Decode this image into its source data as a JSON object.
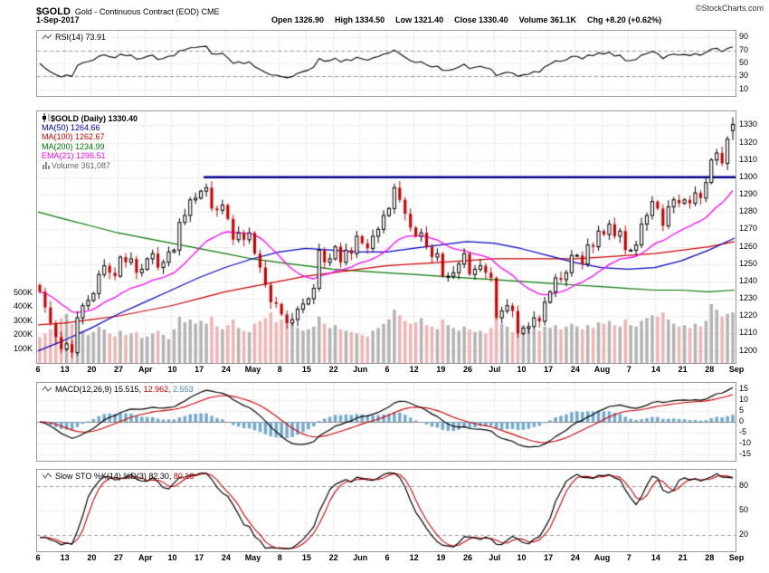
{
  "header": {
    "symbol": "$GOLD",
    "title": "Gold - Continuous Contract (EOD) CME",
    "source": "©StockCharts.com",
    "date": "1-Sep-2017",
    "stats": [
      "Open 1326.90",
      "High 1334.50",
      "Low 1321.40",
      "Close 1330.40",
      "Volume 361.1K",
      "Chg +8.20 (+0.62%)"
    ]
  },
  "legends": {
    "rsi": "RSI(14) 73.91",
    "symbol": "$GOLD (Daily) 1330.40",
    "ma50": "MA(50) 1264.66",
    "ma100": "MA(100) 1262.67",
    "ma200": "MA(200) 1234.99",
    "ema21": "EMA(21) 1296.51",
    "volume": "Volume 361,087",
    "macd_main": "MACD(12,26,9) 15.515,",
    "macd_signal": "12.962,",
    "macd_hist": "2.553",
    "sto_main": "Slow STO %K(14) %D(3) 82.30,",
    "sto_d": "80.18"
  },
  "colors": {
    "up": "#000000",
    "up_fill": "#FFFFFF",
    "down": "#CC0000",
    "vol_up": "#B4B4B4",
    "vol_down": "#F0B4B4",
    "ma50": "#0000BB",
    "ma100": "#CC0000",
    "ma200": "#007700",
    "ema21": "#FF00FF",
    "trendline": "#00008B",
    "macd_hist": "#74AACE",
    "signal": "#CC0000",
    "grid": "#CCCCCC"
  },
  "chart_data": [
    {
      "panel": "rsi",
      "type": "line",
      "label": "RSI(14)",
      "value": 73.91,
      "period": 14,
      "ylim": [
        0,
        100
      ],
      "yticks": [
        90,
        70,
        50,
        30,
        10
      ],
      "bands": [
        70,
        30
      ],
      "note": "RSI(14) curve derived from price closes below"
    },
    {
      "panel": "price",
      "type": "candlestick",
      "symbol": "$GOLD",
      "timeframe": "Daily",
      "date_range": "6-Mar-2017 to 1-Sep-2017",
      "last_close": 1330.4,
      "ylim": [
        1193,
        1338
      ],
      "yticks": [
        1330,
        1320,
        1310,
        1300,
        1290,
        1280,
        1270,
        1260,
        1250,
        1240,
        1230,
        1220,
        1210,
        1200
      ],
      "x_labels": [
        "6",
        "13",
        "20",
        "27",
        "Apr",
        "10",
        "17",
        "24",
        "May",
        "8",
        "15",
        "22",
        "Jun",
        "6",
        "12",
        "19",
        "26",
        "Jul",
        "10",
        "17",
        "24",
        "Aug",
        "7",
        "14",
        "21",
        "28",
        "Sep"
      ],
      "closes": [
        1234,
        1225,
        1216,
        1208,
        1201,
        1204,
        1199,
        1219,
        1226,
        1229,
        1233,
        1244,
        1249,
        1245,
        1243,
        1254,
        1251,
        1253,
        1245,
        1247,
        1253,
        1256,
        1248,
        1251,
        1257,
        1258,
        1274,
        1278,
        1287,
        1288,
        1292,
        1294,
        1282,
        1281,
        1284,
        1276,
        1264,
        1268,
        1264,
        1268,
        1256,
        1248,
        1238,
        1228,
        1227,
        1221,
        1216,
        1218,
        1224,
        1227,
        1230,
        1236,
        1258,
        1251,
        1253,
        1260,
        1251,
        1258,
        1256,
        1266,
        1262,
        1259,
        1266,
        1270,
        1278,
        1282,
        1294,
        1287,
        1279,
        1271,
        1266,
        1268,
        1260,
        1254,
        1256,
        1243,
        1243,
        1245,
        1250,
        1256,
        1244,
        1247,
        1249,
        1245,
        1242,
        1219,
        1223,
        1226,
        1223,
        1210,
        1213,
        1214,
        1219,
        1217,
        1228,
        1234,
        1242,
        1241,
        1245,
        1255,
        1255,
        1250,
        1261,
        1260,
        1269,
        1267,
        1273,
        1266,
        1269,
        1258,
        1258,
        1261,
        1273,
        1278,
        1286,
        1282,
        1272,
        1283,
        1287,
        1285,
        1287,
        1285,
        1291,
        1288,
        1297,
        1310,
        1314,
        1308,
        1322,
        1330.4
      ],
      "volumes_k": [
        185,
        210,
        240,
        265,
        320,
        350,
        280,
        310,
        230,
        200,
        220,
        260,
        240,
        210,
        190,
        230,
        200,
        210,
        220,
        180,
        190,
        210,
        230,
        200,
        170,
        240,
        330,
        290,
        310,
        280,
        300,
        280,
        330,
        260,
        240,
        270,
        310,
        250,
        230,
        220,
        280,
        300,
        320,
        360,
        290,
        310,
        340,
        280,
        250,
        230,
        240,
        260,
        330,
        280,
        250,
        270,
        240,
        230,
        220,
        210,
        200,
        190,
        230,
        250,
        280,
        310,
        380,
        340,
        300,
        280,
        290,
        320,
        270,
        260,
        240,
        310,
        270,
        250,
        230,
        260,
        240,
        220,
        230,
        210,
        250,
        320,
        280,
        260,
        220,
        300,
        270,
        250,
        240,
        230,
        260,
        250,
        270,
        240,
        260,
        280,
        260,
        240,
        270,
        250,
        290,
        280,
        300,
        270,
        260,
        310,
        270,
        260,
        300,
        320,
        340,
        330,
        360,
        310,
        280,
        260,
        270,
        250,
        280,
        260,
        300,
        420,
        380,
        330,
        350,
        361
      ],
      "last_ohlc": {
        "open": 1326.9,
        "high": 1334.5,
        "low": 1321.4,
        "close": 1330.4
      },
      "volume_ticks": [
        {
          "label": "500K",
          "v": 500
        },
        {
          "label": "400K",
          "v": 400
        },
        {
          "label": "300K",
          "v": 300
        },
        {
          "label": "200K",
          "v": 200
        },
        {
          "label": "100K",
          "v": 100
        }
      ],
      "overlays": {
        "ma50": [
          1200,
          1206,
          1213,
          1221,
          1228,
          1235,
          1242,
          1248,
          1253,
          1257,
          1259,
          1258,
          1257,
          1257,
          1259,
          1261,
          1263,
          1262,
          1259,
          1255,
          1251,
          1248,
          1247,
          1248,
          1252,
          1258,
          1265
        ],
        "ma100": [
          1215,
          1216,
          1218,
          1220,
          1223,
          1226,
          1230,
          1234,
          1237,
          1240,
          1243,
          1245,
          1247,
          1249,
          1250,
          1251,
          1252,
          1253,
          1253,
          1253,
          1253,
          1254,
          1255,
          1256,
          1258,
          1260,
          1263
        ],
        "ma200": [
          1280,
          1276,
          1272,
          1268,
          1265,
          1262,
          1259,
          1256,
          1253,
          1251,
          1249,
          1247,
          1246,
          1245,
          1244,
          1243,
          1242,
          1241,
          1240,
          1239,
          1238,
          1237,
          1236,
          1235,
          1235,
          1234,
          1235
        ],
        "ema21_period": 21,
        "trendline": {
          "price": 1300,
          "from_day": 31
        }
      },
      "indicator_values": {
        "ma50": 1264.66,
        "ma100": 1262.67,
        "ma200": 1234.99,
        "ema21": 1296.51,
        "volume": 361087
      }
    },
    {
      "panel": "macd",
      "type": "line+histogram",
      "label": "MACD(12,26,9)",
      "macd": 15.515,
      "signal": 12.962,
      "histogram": 2.553,
      "ylim": [
        -18,
        18
      ],
      "yticks": [
        15,
        10,
        5,
        0,
        -5,
        -10,
        -15
      ],
      "note": "MACD lines and histogram derived from price closes"
    },
    {
      "panel": "sto",
      "type": "line",
      "label": "Slow STO %K(14) %D(3)",
      "k": 82.3,
      "d": 80.18,
      "ylim": [
        0,
        100
      ],
      "yticks": [
        80,
        50,
        20
      ],
      "bands": [
        80,
        20
      ],
      "note": "Stochastic curves derived from price closes"
    }
  ]
}
